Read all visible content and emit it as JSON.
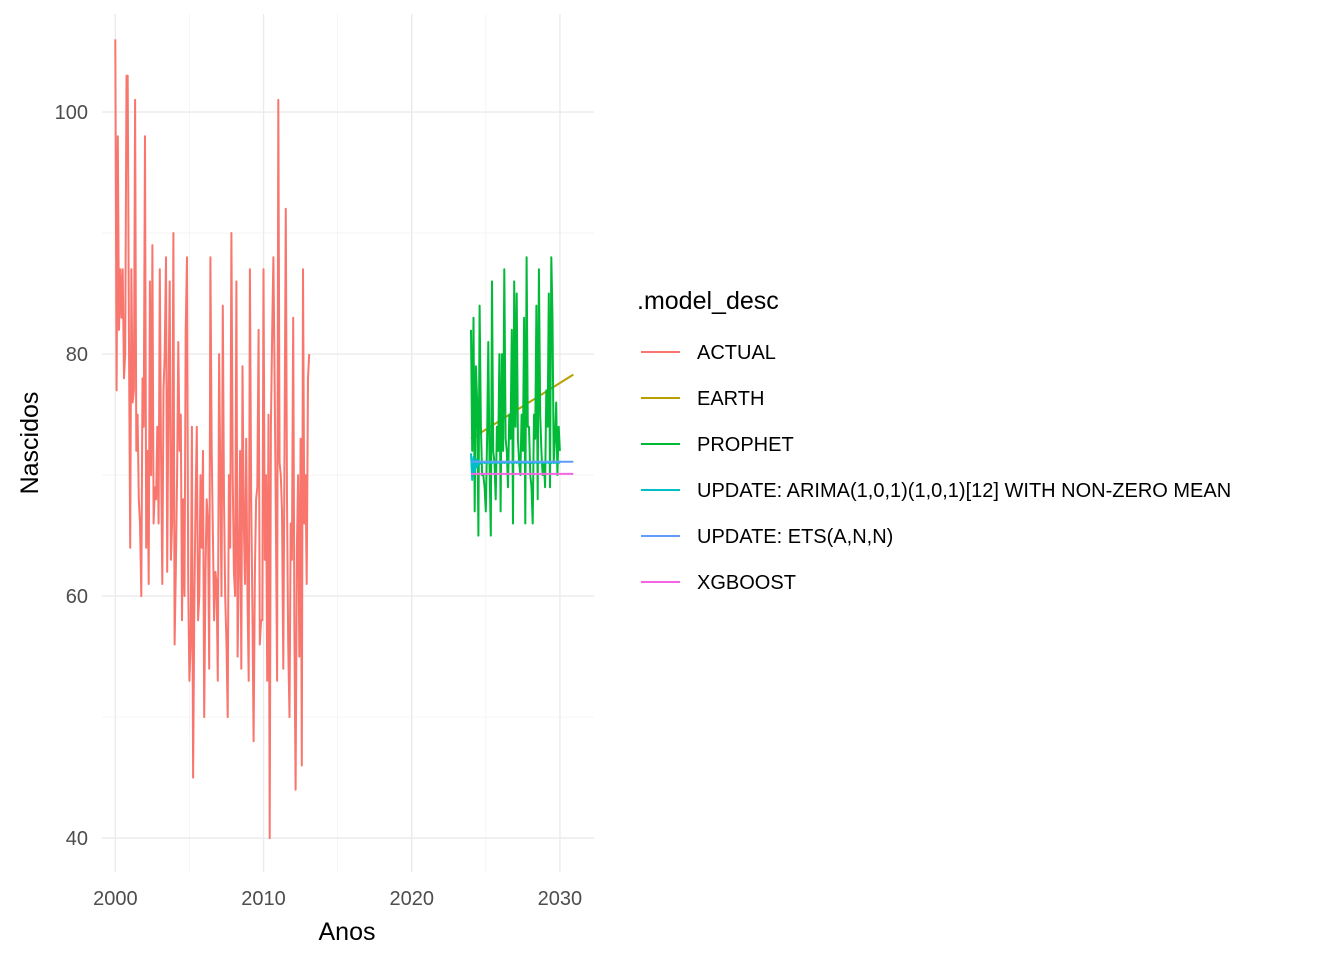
{
  "chart_data": {
    "type": "line",
    "xlabel": "Anos",
    "ylabel": "Nascidos",
    "xlim": [
      1999.1,
      2032.3
    ],
    "ylim": [
      37.2,
      108.1
    ],
    "x_ticks": [
      2000,
      2010,
      2020,
      2030
    ],
    "y_ticks": [
      40,
      60,
      80,
      100
    ],
    "x_minor": [
      2005,
      2015,
      2025
    ],
    "y_minor": [
      50,
      70,
      90
    ],
    "grid": true,
    "legend": {
      "title": ".model_desc",
      "position": "right",
      "entries": [
        "ACTUAL",
        "EARTH",
        "PROPHET",
        "UPDATE: ARIMA(1,0,1)(1,0,1)[12] WITH NON-ZERO MEAN",
        "UPDATE: ETS(A,N,N)",
        "XGBOOST"
      ]
    },
    "series": [
      {
        "name": "ACTUAL",
        "color": "#F8766D",
        "x_start": 2000.0,
        "x_step": 0.08333,
        "values": [
          106,
          77,
          98,
          82,
          87,
          83,
          87,
          78,
          80,
          103,
          103,
          82,
          64,
          87,
          76,
          77,
          101,
          72,
          75,
          68,
          66,
          60,
          78,
          74,
          98,
          64,
          72,
          61,
          86,
          70,
          89,
          66,
          69,
          68,
          74,
          66,
          87,
          72,
          61,
          77,
          80,
          88,
          62,
          76,
          86,
          63,
          66,
          90,
          56,
          62,
          70,
          81,
          72,
          75,
          58,
          68,
          60,
          82,
          88,
          61,
          53,
          56,
          74,
          45,
          60,
          68,
          74,
          58,
          60,
          70,
          64,
          72,
          50,
          62,
          68,
          66,
          54,
          88,
          72,
          65,
          58,
          62,
          61,
          53,
          80,
          70,
          60,
          84,
          68,
          60,
          56,
          50,
          70,
          64,
          90,
          70,
          62,
          60,
          86,
          55,
          62,
          72,
          54,
          79,
          66,
          61,
          73,
          60,
          53,
          87,
          68,
          59,
          48,
          62,
          68,
          69,
          82,
          56,
          58,
          58,
          87,
          63,
          70,
          53,
          75,
          40,
          74,
          82,
          88,
          78,
          66,
          53,
          101,
          71,
          70,
          67,
          54,
          72,
          92,
          68,
          56,
          50,
          66,
          63,
          83,
          57,
          44,
          64,
          70,
          55,
          73,
          46,
          87,
          66,
          70,
          61,
          78,
          80
        ]
      },
      {
        "name": "EARTH",
        "color": "#B79F00",
        "x": [
          2024.0,
          2030.9
        ],
        "values": [
          73.0,
          78.3
        ]
      },
      {
        "name": "PROPHET",
        "color": "#00BA38",
        "x_start": 2024.0,
        "x_step": 0.08333,
        "values": [
          82,
          72,
          83,
          67,
          79,
          76,
          65,
          84,
          74,
          70,
          70,
          69,
          67,
          73,
          81,
          71,
          65,
          86,
          72,
          71,
          68,
          74,
          72,
          80,
          67,
          80,
          72,
          87,
          73,
          72,
          69,
          75,
          73,
          82,
          66,
          86,
          74,
          85,
          73,
          71,
          70,
          75,
          72,
          83,
          66,
          88,
          74,
          74,
          70,
          69,
          66,
          75,
          73,
          84,
          68,
          87,
          75,
          72,
          70,
          71,
          69,
          77,
          74,
          85,
          69,
          88,
          83,
          71,
          73,
          76,
          70,
          74,
          72
        ]
      },
      {
        "name": "UPDATE: ARIMA(1,0,1)(1,0,1)[12] WITH NON-ZERO MEAN",
        "color": "#00BFC4",
        "x_start": 2024.0,
        "x_step": 0.08333,
        "values": [
          71.8,
          69.6,
          71.5,
          70.2,
          71.3,
          70.6,
          71.2,
          70.9,
          71.1,
          71.0,
          71.1,
          71.0,
          71.1,
          71.0,
          71.1,
          71.0,
          71.1,
          71.0,
          71.1,
          71.0,
          71.1,
          71.0,
          71.1,
          71.0,
          71.1,
          71.0,
          71.1,
          71.0,
          71.1,
          71.0,
          71.1,
          71.0,
          71.1,
          71.0,
          71.1,
          71.0,
          71.1,
          71.0,
          71.1,
          71.0,
          71.1,
          71.0,
          71.1,
          71.0,
          71.1,
          71.0,
          71.1,
          71.0,
          71.1,
          71.0,
          71.1,
          71.0,
          71.1,
          71.0,
          71.1,
          71.0,
          71.1,
          71.0,
          71.1,
          71.0,
          71.1,
          71.0,
          71.1,
          71.0,
          71.1,
          71.0,
          71.1,
          71.0,
          71.1,
          71.0,
          71.1,
          71.0,
          71.1
        ]
      },
      {
        "name": "UPDATE: ETS(A,N,N)",
        "color": "#619CFF",
        "x": [
          2024.0,
          2030.9
        ],
        "values": [
          71.1,
          71.1
        ]
      },
      {
        "name": "XGBOOST",
        "color": "#F564E3",
        "x": [
          2024.0,
          2030.9
        ],
        "values": [
          70.1,
          70.1
        ]
      }
    ]
  }
}
